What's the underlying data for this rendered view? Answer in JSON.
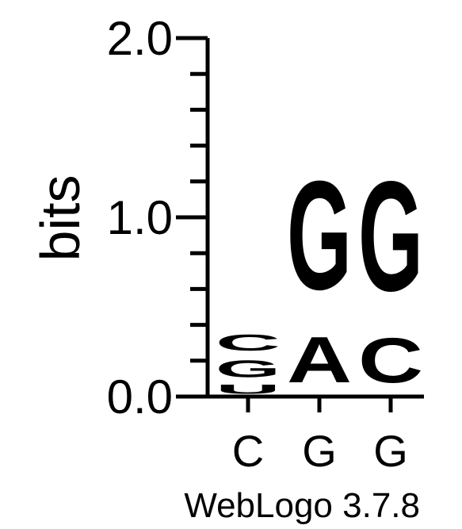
{
  "chart_data": {
    "type": "sequence-logo",
    "ylabel": "bits",
    "ylim": [
      0,
      2.0
    ],
    "yticks": [
      "0.0",
      "1.0",
      "2.0"
    ],
    "positions": [
      {
        "label": "C",
        "stack": [
          {
            "letter": "U",
            "bits": 0.08,
            "color": "#ff8c00"
          },
          {
            "letter": "G",
            "bits": 0.15,
            "color": "#0000ff"
          },
          {
            "letter": "C",
            "bits": 0.14,
            "color": "#0000ff"
          }
        ]
      },
      {
        "label": "G",
        "stack": [
          {
            "letter": "A",
            "bits": 0.41,
            "color": "#ff8c00"
          },
          {
            "letter": "G",
            "bits": 0.97,
            "color": "#0000ff"
          }
        ]
      },
      {
        "label": "G",
        "stack": [
          {
            "letter": "C",
            "bits": 0.4,
            "color": "#0000ff"
          },
          {
            "letter": "G",
            "bits": 0.98,
            "color": "#0000ff"
          }
        ]
      }
    ],
    "footer": "WebLogo 3.7.8"
  }
}
